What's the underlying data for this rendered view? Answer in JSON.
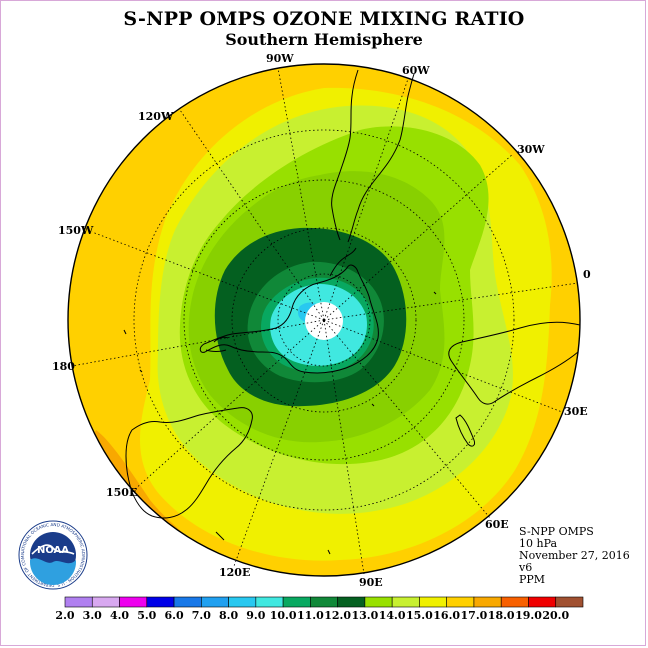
{
  "title": "S-NPP OMPS OZONE MIXING RATIO",
  "subtitle": "Southern Hemisphere",
  "longitude_labels": {
    "l90w": "90W",
    "l60w": "60W",
    "l120w": "120W",
    "l30w": "30W",
    "l150w": "150W",
    "l0": "0",
    "l180": "180",
    "l30e": "30E",
    "l150e": "150E",
    "l60e": "60E",
    "l120e": "120E",
    "l90e": "90E"
  },
  "info": {
    "instrument": "S-NPP OMPS",
    "level": "10 hPa",
    "date": "November 27, 2016",
    "version": "v6",
    "units": "PPM"
  },
  "logo": {
    "text": "NOAA",
    "ring_text": "NATIONAL OCEANIC AND ATMOSPHERIC ADMINISTRATION · U.S. DEPARTMENT OF COMMERCE"
  },
  "colorbar": {
    "ticks": [
      "2.0",
      "3.0",
      "4.0",
      "5.0",
      "6.0",
      "7.0",
      "8.0",
      "9.0",
      "10.0",
      "11.0",
      "12.0",
      "13.0",
      "14.0",
      "15.0",
      "16.0",
      "17.0",
      "18.0",
      "19.0",
      "20.0"
    ],
    "colors": [
      "#b080f0",
      "#d8a8f0",
      "#ee00ee",
      "#0000e8",
      "#1878e8",
      "#20a0f0",
      "#28c8f0",
      "#40e8e0",
      "#08a860",
      "#108838",
      "#046020",
      "#98e000",
      "#c8f030",
      "#f0f000",
      "#ffd000",
      "#f8a800",
      "#f86000",
      "#f00000",
      "#a05030"
    ]
  },
  "chart_data": {
    "type": "heatmap",
    "projection": "south-polar-stereographic",
    "variable": "ozone mixing ratio",
    "units": "PPM",
    "pressure_level": "10 hPa",
    "date": "November 27, 2016",
    "contour_levels": [
      2,
      3,
      4,
      5,
      6,
      7,
      8,
      9,
      10,
      11,
      12,
      13,
      14,
      15,
      16,
      17,
      18,
      19,
      20
    ],
    "pattern": {
      "polar_minimum_band": "9.0-10.0",
      "inner_minimum_patch": "8.0-9.0 near 90W side of pole",
      "collar_bands": [
        "10.0-11.0",
        "11.0-12.0"
      ],
      "outer_bands": [
        "12.0-13.0",
        "13.0-14.0",
        "14.0-15.0",
        "15.0-16.0",
        "16.0-17.0"
      ],
      "maximum_band": "17.0-18.0 near 150E at the edge"
    }
  }
}
